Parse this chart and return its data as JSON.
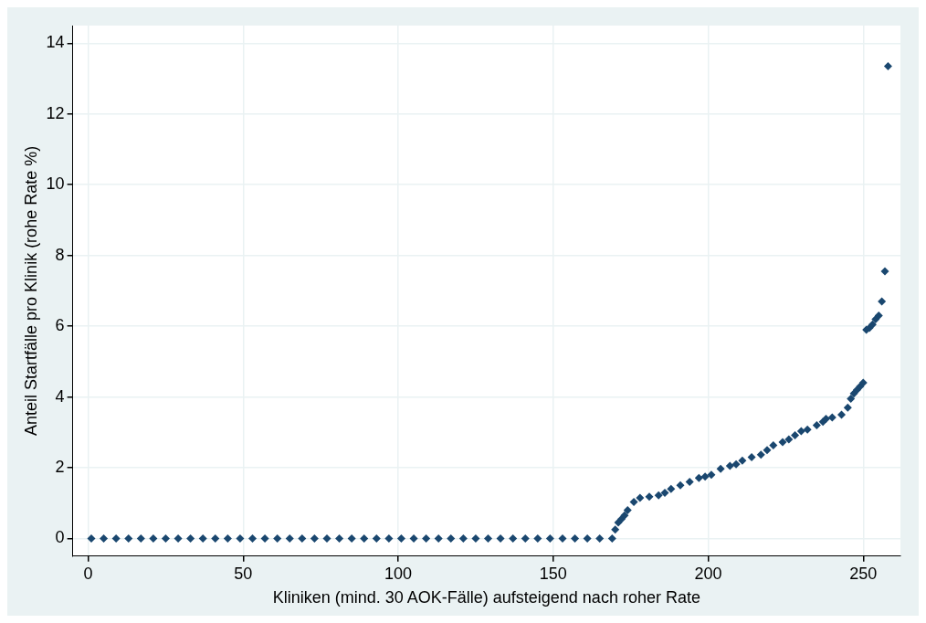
{
  "chart_data": {
    "type": "scatter",
    "xlabel": "Kliniken (mind. 30 AOK-Fälle) aufsteigend nach roher Rate",
    "ylabel": "Anteil Startfälle pro Klinik (rohe Rate %)",
    "series": [
      {
        "color": "#1a476f",
        "x": [
          1,
          5,
          9,
          13,
          17,
          21,
          25,
          29,
          33,
          37,
          41,
          45,
          49,
          53,
          57,
          61,
          65,
          69,
          73,
          77,
          81,
          85,
          89,
          93,
          97,
          101,
          105,
          109,
          113,
          117,
          121,
          125,
          129,
          133,
          137,
          141,
          145,
          149,
          153,
          157,
          161,
          165,
          169,
          170,
          171,
          172,
          173,
          174,
          176,
          178,
          181,
          184,
          186,
          188,
          191,
          194,
          197,
          199,
          201,
          204,
          207,
          209,
          211,
          214,
          217,
          219,
          221,
          224,
          226,
          228,
          230,
          232,
          235,
          237,
          238,
          240,
          243,
          245,
          246,
          247,
          248,
          249,
          250,
          251,
          252,
          253,
          254,
          255,
          256,
          257,
          258
        ],
        "values": [
          0,
          0,
          0,
          0,
          0,
          0,
          0,
          0,
          0,
          0,
          0,
          0,
          0,
          0,
          0,
          0,
          0,
          0,
          0,
          0,
          0,
          0,
          0,
          0,
          0,
          0,
          0,
          0,
          0,
          0,
          0,
          0,
          0,
          0,
          0,
          0,
          0,
          0,
          0,
          0,
          0,
          0,
          0,
          0.25,
          0.45,
          0.55,
          0.65,
          0.8,
          1.03,
          1.15,
          1.18,
          1.22,
          1.29,
          1.4,
          1.5,
          1.6,
          1.71,
          1.75,
          1.8,
          1.97,
          2.05,
          2.1,
          2.2,
          2.3,
          2.37,
          2.5,
          2.63,
          2.72,
          2.8,
          2.92,
          3.03,
          3.08,
          3.2,
          3.3,
          3.38,
          3.42,
          3.5,
          3.7,
          3.95,
          4.1,
          4.2,
          4.3,
          4.4,
          5.9,
          5.95,
          6.05,
          6.2,
          6.3,
          6.7,
          7.55,
          13.35
        ]
      }
    ],
    "xlim": [
      -5,
      262
    ],
    "xticks": [
      0,
      50,
      100,
      150,
      200,
      250
    ],
    "ylim": [
      -0.5,
      14.5
    ],
    "yticks": [
      0,
      2,
      4,
      6,
      8,
      10,
      12,
      14
    ],
    "grid": true,
    "legend": false,
    "marker": "diamond"
  }
}
